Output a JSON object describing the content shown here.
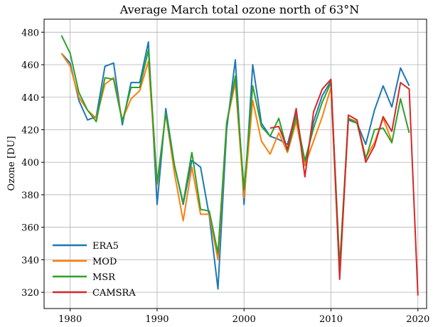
{
  "chart_data": {
    "type": "line",
    "title": "Average March total ozone north of 63°N",
    "y_label": "Ozone [DU]",
    "x": [
      1979,
      1980,
      1981,
      1982,
      1983,
      1984,
      1985,
      1986,
      1987,
      1988,
      1989,
      1990,
      1991,
      1992,
      1993,
      1994,
      1995,
      1996,
      1997,
      1998,
      1999,
      2000,
      2001,
      2002,
      2003,
      2004,
      2005,
      2006,
      2007,
      2008,
      2009,
      2010,
      2011,
      2012,
      2013,
      2014,
      2015,
      2016,
      2017,
      2018,
      2019,
      2020
    ],
    "series": [
      {
        "name": "ERA5",
        "color": "#1f77b4",
        "values": [
          467,
          461,
          438,
          426,
          428,
          459,
          461,
          423,
          449,
          449,
          474,
          374,
          433,
          398,
          374,
          401,
          397,
          367,
          322,
          420,
          463,
          374,
          460,
          424,
          416,
          414,
          411,
          431,
          398,
          425,
          441,
          450,
          333,
          426,
          424,
          411,
          432,
          447,
          434,
          458,
          447,
          null
        ]
      },
      {
        "name": "MOD",
        "color": "#ff7f0e",
        "values": [
          467,
          459,
          440,
          432,
          427,
          448,
          452,
          426,
          439,
          444,
          462,
          386,
          430,
          393,
          364,
          397,
          368,
          368,
          340,
          424,
          449,
          378,
          438,
          413,
          405,
          418,
          406,
          425,
          398,
          413,
          428,
          446,
          330,
          427,
          425,
          403,
          412,
          427,
          413,
          null,
          null,
          null
        ]
      },
      {
        "name": "MSR",
        "color": "#2ca02c",
        "values": [
          478,
          467,
          443,
          432,
          425,
          452,
          451,
          425,
          446,
          446,
          469,
          387,
          430,
          398,
          375,
          406,
          371,
          370,
          344,
          424,
          453,
          383,
          447,
          422,
          416,
          427,
          407,
          428,
          401,
          421,
          437,
          449,
          336,
          427,
          424,
          402,
          420,
          421,
          412,
          439,
          418,
          null
        ]
      },
      {
        "name": "CAMSRA",
        "color": "#d62728",
        "values": [
          null,
          null,
          null,
          null,
          null,
          null,
          null,
          null,
          null,
          null,
          null,
          null,
          null,
          null,
          null,
          null,
          null,
          null,
          null,
          null,
          null,
          null,
          null,
          null,
          421,
          422,
          408,
          433,
          391,
          431,
          445,
          451,
          328,
          429,
          426,
          400,
          410,
          428,
          419,
          449,
          445,
          318
        ]
      }
    ],
    "xlim": [
      1977,
      2021
    ],
    "xticks": [
      1980,
      1990,
      2000,
      2010,
      2020
    ],
    "ylim": [
      310,
      488
    ],
    "yticks": [
      320,
      340,
      360,
      380,
      400,
      420,
      440,
      460,
      480
    ],
    "grid": true,
    "legend": "lower left"
  }
}
